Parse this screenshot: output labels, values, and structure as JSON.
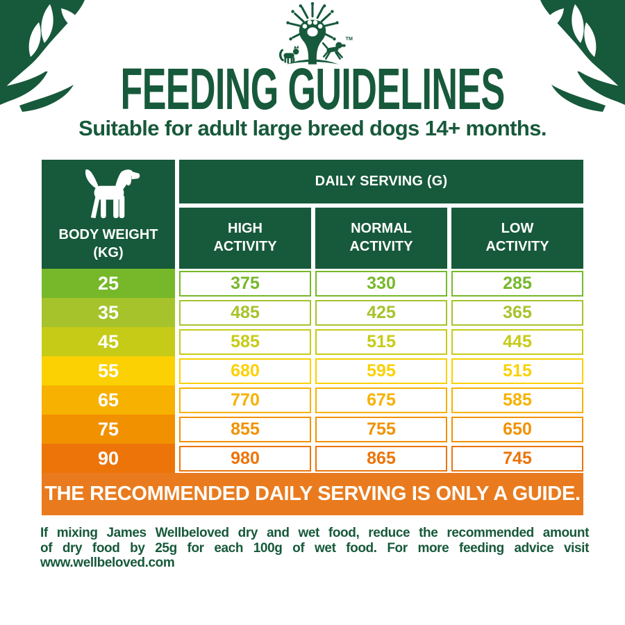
{
  "colors": {
    "dark_green": "#17593B",
    "banner_orange": "#E97B1E",
    "white": "#FFFFFF"
  },
  "header": {
    "title": "FEEDING GUIDELINES",
    "subtitle": "Suitable for adult large breed dogs 14+ months.",
    "trademark": "TM"
  },
  "table": {
    "corner_label": "BODY WEIGHT\n(KG)",
    "corner_icon": "dog-icon",
    "serving_header": "DAILY SERVING (G)",
    "columns": [
      "HIGH\nACTIVITY",
      "NORMAL\nACTIVITY",
      "LOW\nACTIVITY"
    ],
    "rows": [
      {
        "weight": "25",
        "values": [
          "375",
          "330",
          "285"
        ],
        "color": "#76B82A"
      },
      {
        "weight": "35",
        "values": [
          "485",
          "425",
          "365"
        ],
        "color": "#A6C32B"
      },
      {
        "weight": "45",
        "values": [
          "585",
          "515",
          "445"
        ],
        "color": "#C6CB17"
      },
      {
        "weight": "55",
        "values": [
          "680",
          "595",
          "515"
        ],
        "color": "#FBD103"
      },
      {
        "weight": "65",
        "values": [
          "770",
          "675",
          "585"
        ],
        "color": "#F7B100"
      },
      {
        "weight": "75",
        "values": [
          "855",
          "755",
          "650"
        ],
        "color": "#F19100"
      },
      {
        "weight": "90",
        "values": [
          "980",
          "865",
          "745"
        ],
        "color": "#EC7409"
      }
    ]
  },
  "banner": {
    "text": "THE RECOMMENDED DAILY SERVING IS ONLY A GUIDE."
  },
  "footer": {
    "lines": [
      "If mixing James Wellbeloved dry and wet food, reduce the recommended amount",
      "of dry food by 25g for each 100g of wet food. For more feeding advice visit",
      "www.wellbeloved.com"
    ]
  },
  "chart_data": {
    "type": "table",
    "title": "FEEDING GUIDELINES — DAILY SERVING (G)",
    "xlabel": "BODY WEIGHT (KG)",
    "categories": [
      25,
      35,
      45,
      55,
      65,
      75,
      90
    ],
    "series": [
      {
        "name": "HIGH ACTIVITY",
        "values": [
          375,
          485,
          585,
          680,
          770,
          855,
          980
        ]
      },
      {
        "name": "NORMAL ACTIVITY",
        "values": [
          330,
          425,
          515,
          595,
          675,
          755,
          865
        ]
      },
      {
        "name": "LOW ACTIVITY",
        "values": [
          285,
          365,
          445,
          515,
          585,
          650,
          745
        ]
      }
    ]
  }
}
